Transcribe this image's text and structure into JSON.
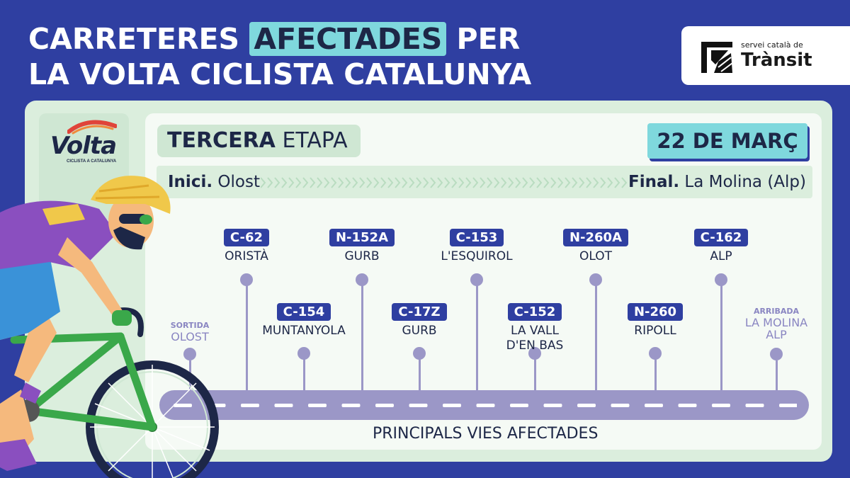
{
  "header": {
    "title_line1_a": "CARRETERES",
    "title_line1_hl": "AFECTADES",
    "title_line1_b": "PER",
    "title_line2": "LA VOLTA CICLISTA CATALUNYA"
  },
  "logo": {
    "small": "servei català de",
    "big": "Trànsit"
  },
  "volta_logo": {
    "word": "Volta",
    "sub": "CICLISTA A CATALUNYA"
  },
  "stage": {
    "bold": "TERCERA",
    "rest": "ETAPA",
    "date": "22 DE MARÇ",
    "start_label": "Inici.",
    "start_place": "Olost",
    "end_label": "Final.",
    "end_place": "La Molina (Alp)"
  },
  "route": {
    "start": {
      "small": "SORTIDA",
      "big": "OLOST"
    },
    "finish": {
      "small": "ARRIBADA",
      "big1": "LA MOLINA",
      "big2": "ALP"
    },
    "roads": [
      {
        "code": "C-62",
        "place1": "ORISTÀ",
        "place2": ""
      },
      {
        "code": "C-154",
        "place1": "MUNTANYOLA",
        "place2": ""
      },
      {
        "code": "N-152A",
        "place1": "GURB",
        "place2": ""
      },
      {
        "code": "C-17Z",
        "place1": "GURB",
        "place2": ""
      },
      {
        "code": "C-153",
        "place1": "L'ESQUIROL",
        "place2": ""
      },
      {
        "code": "C-152",
        "place1": "LA VALL",
        "place2": "D'EN BAS"
      },
      {
        "code": "N-260A",
        "place1": "OLOT",
        "place2": ""
      },
      {
        "code": "N-260",
        "place1": "RIPOLL",
        "place2": ""
      },
      {
        "code": "C-162",
        "place1": "ALP",
        "place2": ""
      }
    ],
    "road_caption": "PRINCIPALS VIES AFECTADES"
  },
  "colors": {
    "background": "#2f3fa1",
    "accent": "#7fd8dd",
    "road": "#9b97c7",
    "text_dark": "#1d2747"
  }
}
